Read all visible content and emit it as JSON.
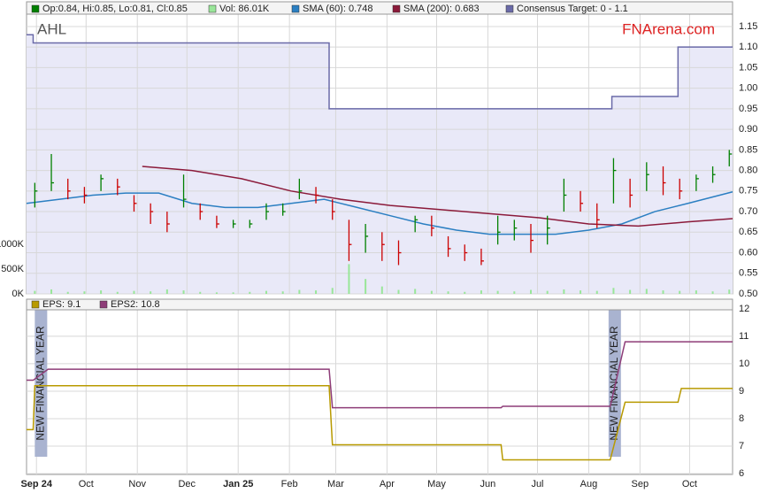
{
  "chart_data": [
    {
      "type": "ohlc",
      "title": "AHL",
      "watermark": "FNArena.com",
      "xlim": [
        0,
        427
      ],
      "xticks": [
        {
          "value": 6,
          "label": "Sep 24"
        },
        {
          "value": 36,
          "label": "Oct"
        },
        {
          "value": 67,
          "label": "Nov"
        },
        {
          "value": 97,
          "label": "Dec"
        },
        {
          "value": 128,
          "label": "Jan 25"
        },
        {
          "value": 159,
          "label": "Feb"
        },
        {
          "value": 187,
          "label": "Mar"
        },
        {
          "value": 218,
          "label": "Apr"
        },
        {
          "value": 248,
          "label": "May"
        },
        {
          "value": 279,
          "label": "Jun"
        },
        {
          "value": 309,
          "label": "Jul"
        },
        {
          "value": 340,
          "label": "Aug"
        },
        {
          "value": 371,
          "label": "Sep"
        },
        {
          "value": 401,
          "label": "Oct"
        }
      ],
      "ylim": [
        0.5,
        1.18
      ],
      "yticks": [
        {
          "value": 0.5,
          "label": "0.50"
        },
        {
          "value": 0.55,
          "label": "0.55"
        },
        {
          "value": 0.6,
          "label": "0.60"
        },
        {
          "value": 0.65,
          "label": "0.65"
        },
        {
          "value": 0.7,
          "label": "0.70"
        },
        {
          "value": 0.75,
          "label": "0.75"
        },
        {
          "value": 0.8,
          "label": "0.80"
        },
        {
          "value": 0.85,
          "label": "0.85"
        },
        {
          "value": 0.9,
          "label": "0.90"
        },
        {
          "value": 0.95,
          "label": "0.95"
        },
        {
          "value": 1.0,
          "label": "1.00"
        },
        {
          "value": 1.05,
          "label": "1.05"
        },
        {
          "value": 1.1,
          "label": "1.10"
        },
        {
          "value": 1.15,
          "label": "1.15"
        }
      ],
      "volticks": [
        {
          "value": 0,
          "label": "0K"
        },
        {
          "value": 500,
          "label": "500K"
        },
        {
          "value": 1000,
          "label": "1000K"
        }
      ],
      "x": [
        5,
        15,
        25,
        35,
        45,
        55,
        65,
        75,
        85,
        95,
        105,
        115,
        125,
        135,
        145,
        155,
        165,
        175,
        185,
        195,
        205,
        215,
        225,
        235,
        245,
        255,
        265,
        275,
        285,
        295,
        305,
        315,
        325,
        335,
        345,
        355,
        365,
        375,
        385,
        395,
        405,
        415,
        425
      ],
      "series": [
        {
          "name": "Op:0.84, Hi:0.85, Lo:0.81, Cl:0.85",
          "color": "#008000",
          "high": [
            0.77,
            0.84,
            0.78,
            0.76,
            0.79,
            0.78,
            0.74,
            0.72,
            0.7,
            0.79,
            0.72,
            0.69,
            0.68,
            0.68,
            0.72,
            0.72,
            0.78,
            0.76,
            0.73,
            0.68,
            0.67,
            0.65,
            0.63,
            0.69,
            0.69,
            0.64,
            0.62,
            0.61,
            0.69,
            0.68,
            0.67,
            0.69,
            0.78,
            0.75,
            0.72,
            0.83,
            0.78,
            0.82,
            0.81,
            0.78,
            0.79,
            0.81,
            0.85
          ],
          "low": [
            0.71,
            0.75,
            0.73,
            0.72,
            0.75,
            0.74,
            0.7,
            0.67,
            0.65,
            0.71,
            0.68,
            0.66,
            0.66,
            0.66,
            0.68,
            0.69,
            0.73,
            0.72,
            0.68,
            0.58,
            0.6,
            0.58,
            0.57,
            0.65,
            0.64,
            0.59,
            0.58,
            0.57,
            0.62,
            0.63,
            0.6,
            0.62,
            0.7,
            0.7,
            0.66,
            0.72,
            0.71,
            0.75,
            0.74,
            0.73,
            0.75,
            0.77,
            0.81
          ],
          "values": [
            0.75,
            0.77,
            0.75,
            0.74,
            0.78,
            0.76,
            0.72,
            0.7,
            0.67,
            0.73,
            0.7,
            0.67,
            0.67,
            0.67,
            0.7,
            0.7,
            0.75,
            0.74,
            0.7,
            0.62,
            0.64,
            0.62,
            0.6,
            0.68,
            0.66,
            0.61,
            0.6,
            0.58,
            0.65,
            0.66,
            0.63,
            0.66,
            0.74,
            0.72,
            0.68,
            0.8,
            0.74,
            0.79,
            0.77,
            0.75,
            0.78,
            0.79,
            0.84
          ]
        },
        {
          "name": "Vol: 86.01K",
          "color": "#99e699",
          "axis": "vol",
          "values": [
            60,
            90,
            40,
            50,
            70,
            40,
            60,
            50,
            90,
            70,
            40,
            30,
            30,
            40,
            60,
            50,
            80,
            70,
            120,
            600,
            300,
            150,
            80,
            100,
            60,
            50,
            40,
            70,
            60,
            50,
            80,
            60,
            90,
            70,
            60,
            120,
            80,
            100,
            70,
            60,
            70,
            50,
            86.01
          ]
        },
        {
          "name": "SMA (60): 0.748",
          "color": "#2b7fc2",
          "x": [
            0,
            20,
            40,
            60,
            80,
            100,
            120,
            140,
            160,
            180,
            200,
            220,
            240,
            260,
            280,
            300,
            320,
            340,
            360,
            380,
            400,
            427
          ],
          "values": [
            0.72,
            0.73,
            0.74,
            0.745,
            0.745,
            0.72,
            0.71,
            0.71,
            0.72,
            0.73,
            0.71,
            0.69,
            0.67,
            0.655,
            0.645,
            0.645,
            0.645,
            0.655,
            0.67,
            0.7,
            0.72,
            0.748
          ]
        },
        {
          "name": "SMA (200): 0.683",
          "color": "#8b1a3a",
          "x": [
            70,
            100,
            130,
            160,
            190,
            220,
            250,
            280,
            310,
            340,
            370,
            400,
            427
          ],
          "values": [
            0.81,
            0.8,
            0.78,
            0.75,
            0.73,
            0.715,
            0.705,
            0.695,
            0.685,
            0.67,
            0.665,
            0.675,
            0.683
          ]
        },
        {
          "name": "Consensus Target: 0 - 1.1",
          "color": "#6a6aa8",
          "x": [
            0,
            4,
            4,
            183,
            183,
            354,
            354,
            394,
            394,
            427
          ],
          "values": [
            1.13,
            1.13,
            1.11,
            1.11,
            0.95,
            0.95,
            0.98,
            0.98,
            1.1,
            1.1
          ]
        }
      ]
    },
    {
      "type": "line",
      "annotations": [
        "NEW FINANCIAL YEAR",
        "NEW FINANCIAL YEAR"
      ],
      "xlim": [
        0,
        427
      ],
      "ylim": [
        5.97,
        12.35
      ],
      "yticks": [
        6,
        7,
        8,
        9,
        10,
        11,
        12
      ],
      "series": [
        {
          "name": "EPS: 9.1",
          "color": "#b89a00",
          "x": [
            0,
            4,
            5,
            183,
            185,
            287,
            288,
            353,
            362,
            394,
            396,
            427
          ],
          "values": [
            7.6,
            7.6,
            9.2,
            9.2,
            7.05,
            7.05,
            6.5,
            6.5,
            8.6,
            8.6,
            9.1,
            9.1
          ]
        },
        {
          "name": "EPS2: 10.8",
          "color": "#8e3d78",
          "x": [
            0,
            4,
            13,
            183,
            185,
            287,
            288,
            353,
            362,
            427
          ],
          "values": [
            9.4,
            9.4,
            9.8,
            9.8,
            8.4,
            8.4,
            8.45,
            8.45,
            10.8,
            10.8
          ]
        }
      ]
    }
  ]
}
